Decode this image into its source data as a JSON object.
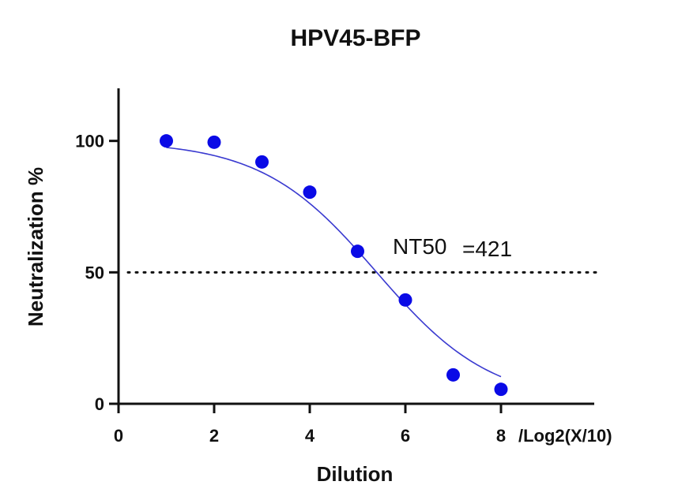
{
  "chart_data": {
    "type": "scatter",
    "title": "HPV45-BFP",
    "xlabel": "Dilution",
    "x_unit_label": "/Log2(X/10)",
    "ylabel": "Neutralization %",
    "xlim": [
      0,
      10
    ],
    "ylim": [
      0,
      120
    ],
    "x_ticks": [
      0,
      2,
      4,
      6,
      8
    ],
    "y_ticks": [
      0,
      50,
      100
    ],
    "grid": false,
    "series": [
      {
        "x": [
          1,
          2,
          3,
          4,
          5,
          6,
          7,
          8
        ],
        "y": [
          100,
          99.5,
          92,
          80.5,
          58,
          39.5,
          11,
          5.5
        ]
      }
    ],
    "fit_curve": {
      "model": "sigmoid",
      "top": 100,
      "bottom": 0,
      "x50": 5.4,
      "hill_slope": 0.6
    },
    "reference_line": {
      "y": 50,
      "style": "dotted"
    },
    "annotation": {
      "label": "NT50",
      "value": "=421"
    },
    "colors": {
      "points": "#0a0ae6",
      "curve": "#3a3ad0",
      "axes": "#111111",
      "reference": "#111111"
    }
  }
}
